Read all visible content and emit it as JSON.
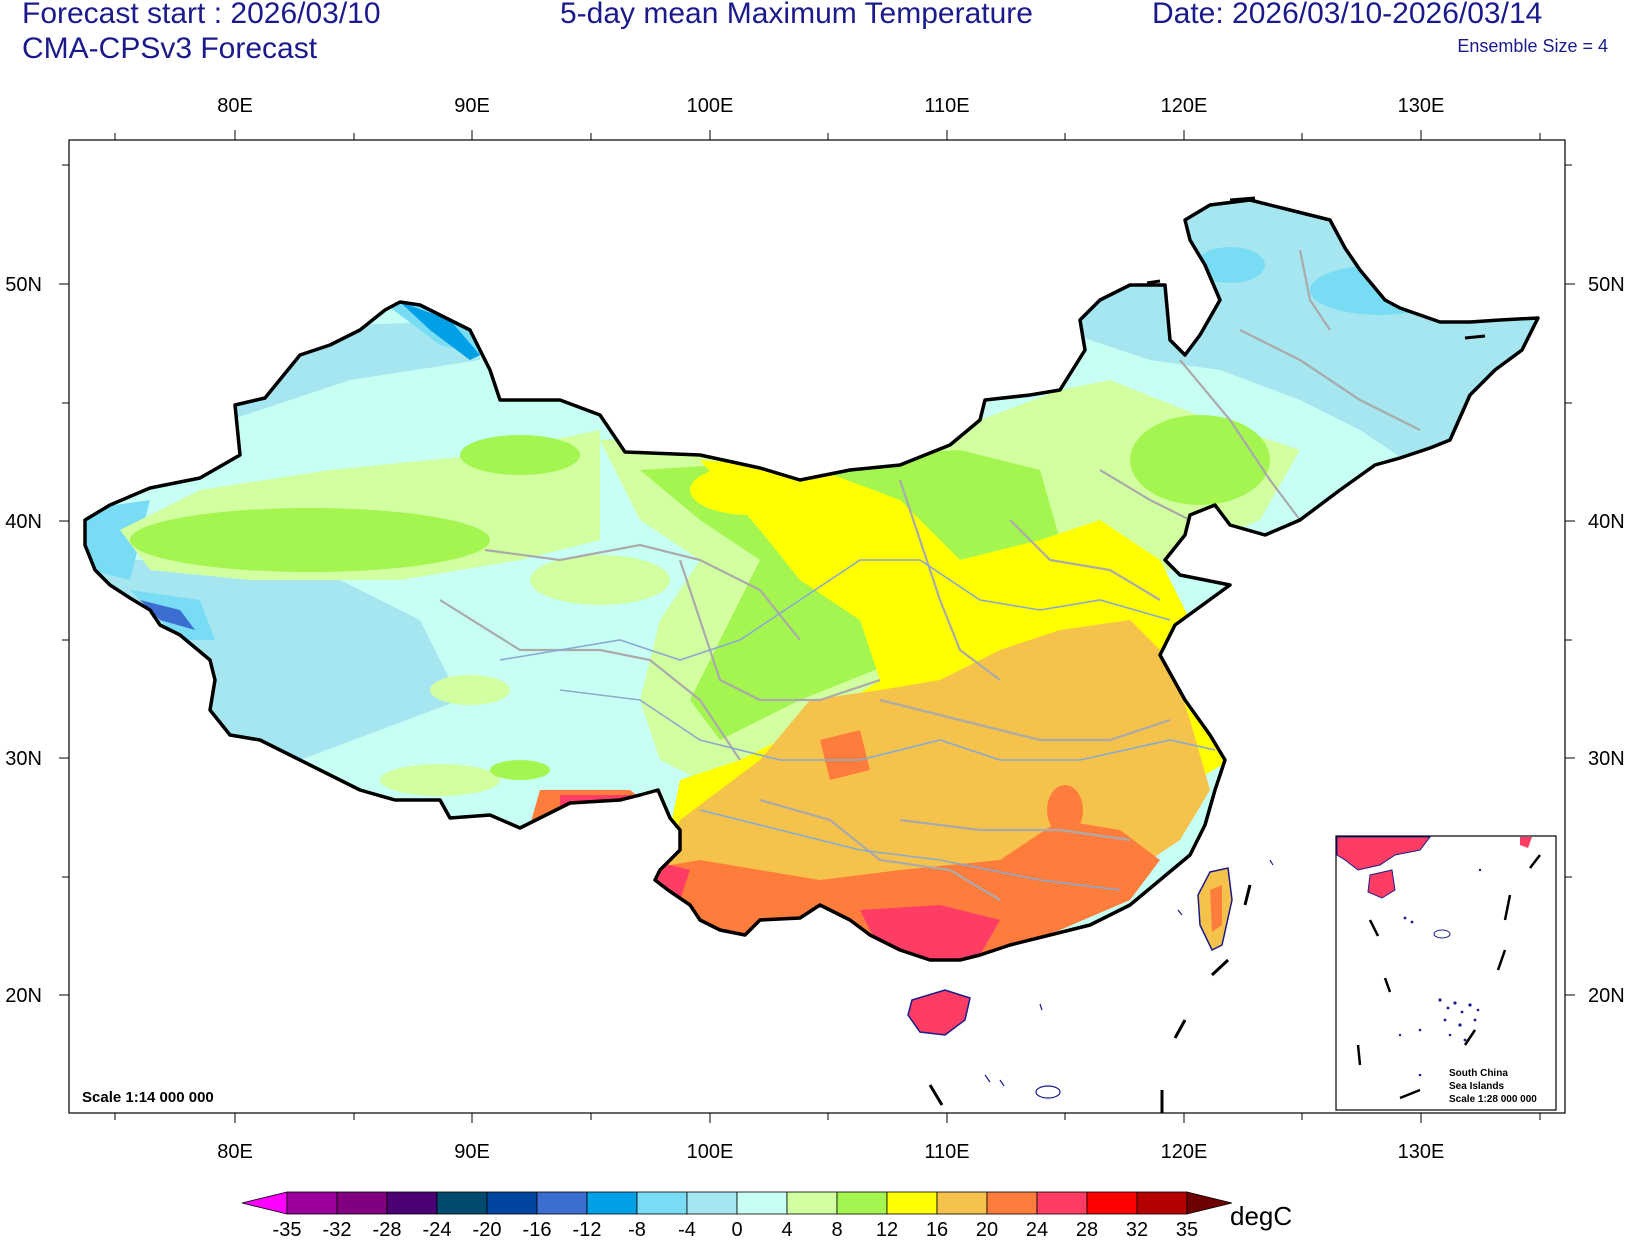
{
  "header": {
    "forecast_start": "Forecast start : 2026/03/10",
    "model": "CMA-CPSv3 Forecast",
    "title": "5-day mean Maximum Temperature",
    "date_range": "Date: 2026/03/10-2026/03/14",
    "ensemble": "Ensemble Size = 4"
  },
  "map": {
    "lon_labels": [
      "80E",
      "90E",
      "100E",
      "110E",
      "120E",
      "130E"
    ],
    "lat_labels": [
      "50N",
      "40N",
      "30N",
      "20N"
    ],
    "scale_text": "Scale 1:14 000 000",
    "inset": {
      "line1": "South China",
      "line2": "Sea Islands",
      "line3": "Scale 1:28 000 000"
    }
  },
  "colorbar": {
    "unit": "degC",
    "labels": [
      "-35",
      "-32",
      "-28",
      "-24",
      "-20",
      "-16",
      "-12",
      "-8",
      "-4",
      "0",
      "4",
      "8",
      "12",
      "16",
      "20",
      "24",
      "28",
      "32",
      "35"
    ],
    "colors": [
      "#ff00ff",
      "#9b009b",
      "#800080",
      "#4b0073",
      "#004b6e",
      "#0045a0",
      "#3c6ed2",
      "#00a0e6",
      "#78dcf5",
      "#a5e6f0",
      "#c8fff5",
      "#d2ffa0",
      "#a5f550",
      "#ffff00",
      "#f5c34b",
      "#ff7d3c",
      "#ff3c64",
      "#ff0000",
      "#b40000",
      "#6e0000"
    ]
  }
}
